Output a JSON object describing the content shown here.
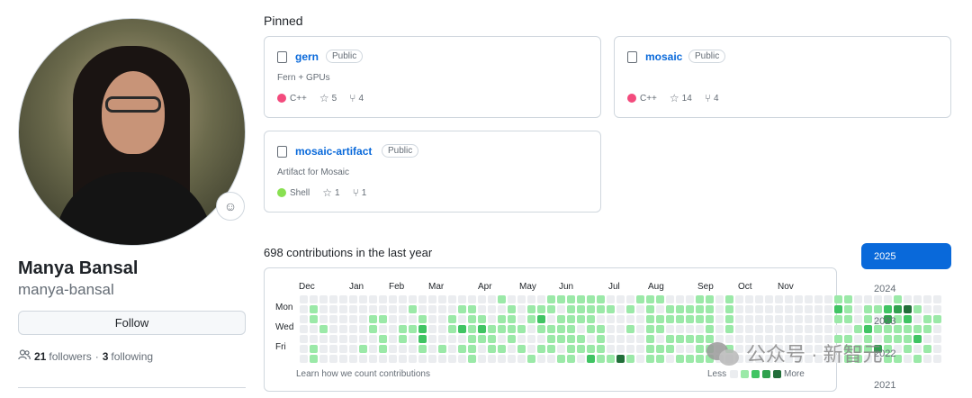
{
  "profile": {
    "name": "Manya Bansal",
    "login": "manya-bansal",
    "follow_label": "Follow",
    "followers_count": "21",
    "followers_label": "followers",
    "separator": "·",
    "following_count": "3",
    "following_label": "following"
  },
  "pinned": {
    "title": "Pinned",
    "repos": [
      {
        "name": "gern",
        "visibility": "Public",
        "description": "Fern + GPUs",
        "language": "C++",
        "language_color": "#f34b7d",
        "stars": "5",
        "forks": "4"
      },
      {
        "name": "mosaic",
        "visibility": "Public",
        "description": "",
        "language": "C++",
        "language_color": "#f34b7d",
        "stars": "14",
        "forks": "4"
      },
      {
        "name": "mosaic-artifact",
        "visibility": "Public",
        "description": "Artifact for Mosaic",
        "language": "Shell",
        "language_color": "#89e051",
        "stars": "1",
        "forks": "1"
      }
    ]
  },
  "contributions": {
    "title": "698 contributions in the last year",
    "months": [
      "Dec",
      "Jan",
      "Feb",
      "Mar",
      "Apr",
      "May",
      "Jun",
      "Jul",
      "Aug",
      "Sep",
      "Oct",
      "Nov"
    ],
    "days": [
      "Mon",
      "Wed",
      "Fri"
    ],
    "learn_link": "Learn how we count contributions",
    "legend_less": "Less",
    "legend_more": "More",
    "levels": [
      "#ebedf0",
      "#9be9a8",
      "#40c463",
      "#30a14e",
      "#216e39"
    ],
    "grid": [
      "0000000",
      "0110011",
      "0001000",
      "0000000",
      "0000000",
      "0000000",
      "0000010",
      "0011000",
      "0010110",
      "0000000",
      "0001100",
      "0101000",
      "0012210",
      "0000000",
      "0000010",
      "0011000",
      "0102010",
      "0111111",
      "0012100",
      "0001110",
      "1011010",
      "0111100",
      "0001010",
      "0110001",
      "0121010",
      "1101110",
      "1011101",
      "1111111",
      "1110110",
      "1111012",
      "1101111",
      "0100001",
      "0000004",
      "0101001",
      "1000000",
      "1111111",
      "1011011",
      "0110110",
      "0110101",
      "0110101",
      "1110111",
      "1111111",
      "0000000",
      "1111010",
      "0000000",
      "0000000",
      "0000000",
      "0000000",
      "0000000",
      "0000000",
      "0000000",
      "0000000",
      "0000000",
      "0000000",
      "1210100",
      "1110111",
      "0001011",
      "0112110",
      "0101030",
      "0231111",
      "1311101",
      "0421110",
      "0101201",
      "0011010",
      "0010000"
    ]
  },
  "years": [
    "2025",
    "2024",
    "2023",
    "2022",
    "2021"
  ],
  "watermark": "公众号 · 新智元"
}
